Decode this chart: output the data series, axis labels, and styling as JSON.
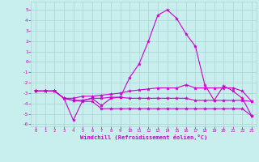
{
  "xlabel": "Windchill (Refroidissement éolien,°C)",
  "background_color": "#c8efee",
  "grid_color": "#a8d4d0",
  "line_color": "#cc00cc",
  "xlim": [
    -0.5,
    23.5
  ],
  "ylim": [
    -6.2,
    5.8
  ],
  "yticks": [
    -6,
    -5,
    -4,
    -3,
    -2,
    -1,
    0,
    1,
    2,
    3,
    4,
    5
  ],
  "xticks": [
    0,
    1,
    2,
    3,
    4,
    5,
    6,
    7,
    8,
    9,
    10,
    11,
    12,
    13,
    14,
    15,
    16,
    17,
    18,
    19,
    20,
    21,
    22,
    23
  ],
  "line1_x": [
    0,
    1,
    2,
    3,
    4,
    5,
    6,
    7,
    8,
    9,
    10,
    11,
    12,
    13,
    14,
    15,
    16,
    17,
    18,
    19,
    20,
    21,
    22,
    23
  ],
  "line1_y": [
    -2.8,
    -2.8,
    -2.8,
    -3.5,
    -5.6,
    -3.7,
    -3.5,
    -4.2,
    -3.5,
    -3.4,
    -1.5,
    -0.2,
    2.0,
    4.5,
    5.0,
    4.2,
    2.7,
    1.5,
    -2.2,
    -3.7,
    -2.3,
    -2.8,
    -3.5,
    -5.2
  ],
  "line2_x": [
    0,
    1,
    2,
    3,
    4,
    5,
    6,
    7,
    8,
    9,
    10,
    11,
    12,
    13,
    14,
    15,
    16,
    17,
    18,
    19,
    20,
    21,
    22,
    23
  ],
  "line2_y": [
    -2.8,
    -2.8,
    -2.8,
    -3.5,
    -3.5,
    -3.3,
    -3.3,
    -3.2,
    -3.1,
    -3.0,
    -2.8,
    -2.7,
    -2.6,
    -2.5,
    -2.5,
    -2.5,
    -2.2,
    -2.5,
    -2.5,
    -2.5,
    -2.5,
    -2.5,
    -2.8,
    -3.8
  ],
  "line3_x": [
    0,
    1,
    2,
    3,
    4,
    5,
    6,
    7,
    8,
    9,
    10,
    11,
    12,
    13,
    14,
    15,
    16,
    17,
    18,
    19,
    20,
    21,
    22,
    23
  ],
  "line3_y": [
    -2.8,
    -2.8,
    -2.8,
    -3.5,
    -3.7,
    -3.7,
    -3.5,
    -3.5,
    -3.4,
    -3.4,
    -3.5,
    -3.5,
    -3.5,
    -3.5,
    -3.5,
    -3.5,
    -3.5,
    -3.7,
    -3.7,
    -3.7,
    -3.7,
    -3.7,
    -3.7,
    -3.8
  ],
  "line4_x": [
    0,
    1,
    2,
    3,
    4,
    5,
    6,
    7,
    8,
    9,
    10,
    11,
    12,
    13,
    14,
    15,
    16,
    17,
    18,
    19,
    20,
    21,
    22,
    23
  ],
  "line4_y": [
    -2.8,
    -2.8,
    -2.8,
    -3.5,
    -3.7,
    -3.8,
    -3.8,
    -4.5,
    -4.5,
    -4.5,
    -4.5,
    -4.5,
    -4.5,
    -4.5,
    -4.5,
    -4.5,
    -4.5,
    -4.5,
    -4.5,
    -4.5,
    -4.5,
    -4.5,
    -4.5,
    -5.2
  ]
}
